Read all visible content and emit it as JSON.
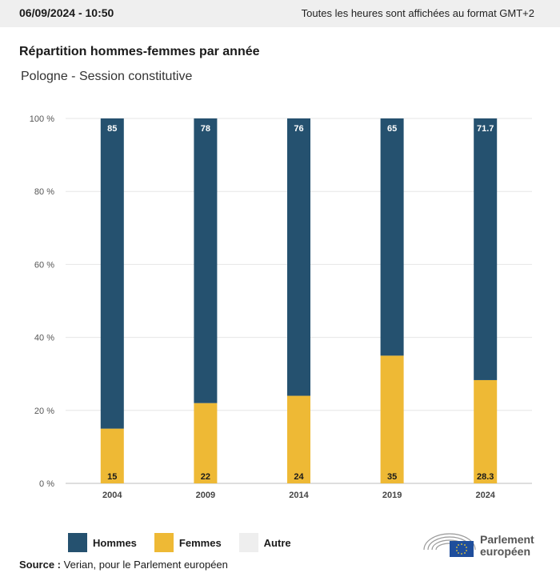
{
  "header": {
    "date": "06/09/2024 - 10:50",
    "timezone_note": "Toutes les heures sont affichées au format GMT+2"
  },
  "title": "Répartition hommes-femmes par année",
  "subtitle": "Pologne - Session constitutive",
  "colors": {
    "hommes": "#25516f",
    "femmes": "#eeb935",
    "autre": "#eeeeee"
  },
  "legend": [
    {
      "label": "Hommes",
      "color": "#25516f"
    },
    {
      "label": "Femmes",
      "color": "#eeb935"
    },
    {
      "label": "Autre",
      "color": "#eeeeee"
    }
  ],
  "source": {
    "label": "Source :",
    "text": "Verian, pour le Parlement européen"
  },
  "logo": {
    "line1": "Parlement",
    "line2": "européen"
  },
  "chart_data": {
    "type": "bar",
    "stacked": true,
    "categories": [
      "2004",
      "2009",
      "2014",
      "2019",
      "2024"
    ],
    "series": [
      {
        "name": "Femmes",
        "values": [
          15,
          22,
          24,
          35,
          28.3
        ],
        "labels": [
          "15",
          "22",
          "24",
          "35",
          "28.3"
        ]
      },
      {
        "name": "Hommes",
        "values": [
          85,
          78,
          76,
          65,
          71.7
        ],
        "labels": [
          "85",
          "78",
          "76",
          "65",
          "71.7"
        ]
      }
    ],
    "ylim": [
      0,
      100
    ],
    "yticks": [
      0,
      20,
      40,
      60,
      80,
      100
    ],
    "ytick_labels": [
      "0 %",
      "20 %",
      "40 %",
      "60 %",
      "80 %",
      "100 %"
    ],
    "grid": true,
    "legend_position": "bottom-left"
  }
}
